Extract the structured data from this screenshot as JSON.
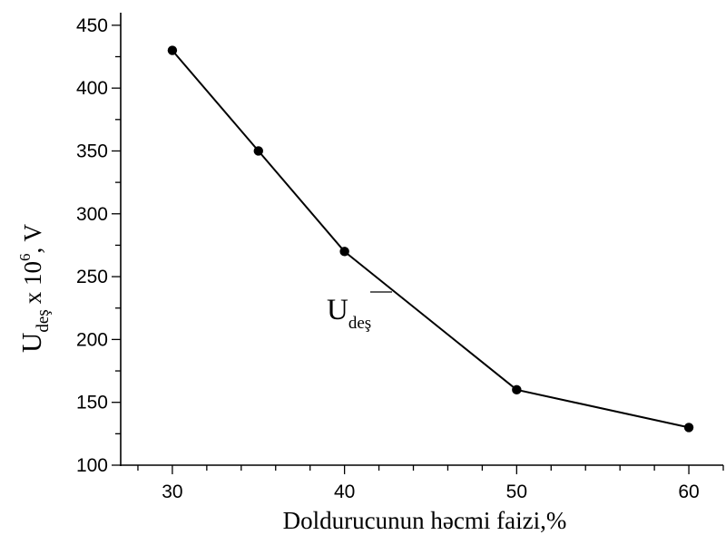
{
  "chart_data": {
    "type": "line",
    "title": "",
    "xlabel": "Doldurucunun həcmi faizi,%",
    "ylabel": {
      "main": "U",
      "sub": "deş",
      "mult": "x 10",
      "exp": "6",
      "unit": ", V"
    },
    "x": [
      30,
      35,
      40,
      50,
      60
    ],
    "series": [
      {
        "values": [
          430,
          350,
          270,
          160,
          130
        ]
      }
    ],
    "xlim": [
      27,
      62
    ],
    "ylim": [
      100,
      460
    ],
    "x_ticks": [
      "30",
      "40",
      "50",
      "60"
    ],
    "y_ticks": [
      "100",
      "150",
      "200",
      "250",
      "300",
      "350",
      "400",
      "450"
    ],
    "annotation": {
      "main": "U",
      "sub": "deş"
    },
    "grid": false,
    "colors": {
      "line": "#000000",
      "marker": "#000000"
    }
  }
}
